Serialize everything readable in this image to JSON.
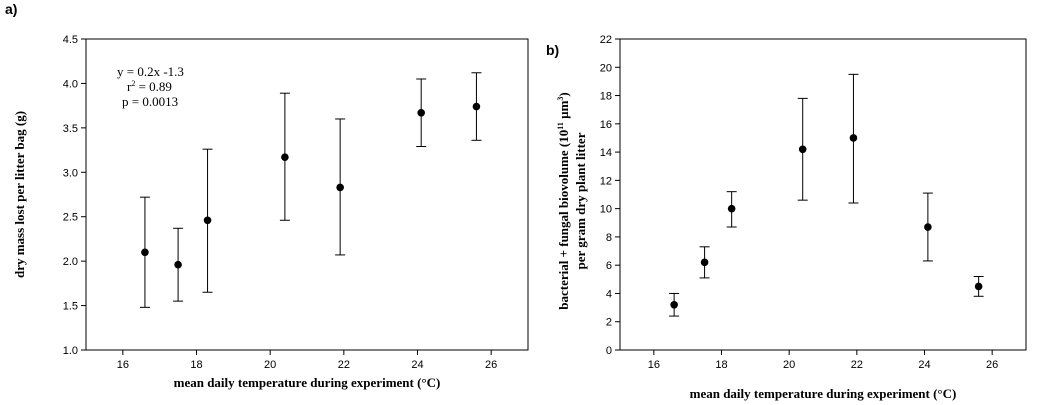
{
  "chart_data": [
    {
      "type": "scatter",
      "panel_label": "a)",
      "xlabel": "mean daily temperature during experiment (°C)",
      "ylabel": "dry mass lost per litter bag (g)",
      "xlim": [
        15,
        27
      ],
      "ylim": [
        1.0,
        4.5
      ],
      "xticks": [
        16,
        18,
        20,
        22,
        24,
        26
      ],
      "yticks": [
        1.0,
        1.5,
        2.0,
        2.5,
        3.0,
        3.5,
        4.0,
        4.5
      ],
      "ytick_decimals": 1,
      "grid": false,
      "points": [
        {
          "x": 16.6,
          "y": 2.1,
          "err_low": 1.48,
          "err_high": 2.72
        },
        {
          "x": 17.5,
          "y": 1.96,
          "err_low": 1.55,
          "err_high": 2.37
        },
        {
          "x": 18.3,
          "y": 2.46,
          "err_low": 1.65,
          "err_high": 3.26
        },
        {
          "x": 20.4,
          "y": 3.17,
          "err_low": 2.46,
          "err_high": 3.89
        },
        {
          "x": 21.9,
          "y": 2.83,
          "err_low": 2.07,
          "err_high": 3.6
        },
        {
          "x": 24.1,
          "y": 3.67,
          "err_low": 3.29,
          "err_high": 4.05
        },
        {
          "x": 25.6,
          "y": 3.74,
          "err_low": 3.36,
          "err_high": 4.12
        }
      ],
      "annotation": {
        "equation": "y = 0.2x -1.3",
        "r2_prefix": "r",
        "r2_sup": "2",
        "r2_value": " = 0.89",
        "pvalue": "p = 0.0013"
      }
    },
    {
      "type": "scatter",
      "panel_label": "b)",
      "xlabel": "mean daily temperature during experiment (°C)",
      "ylabel_line1_parts": [
        "bacterial + fungal biovolume (10",
        "11",
        " µm",
        "3",
        ")"
      ],
      "ylabel_line2": "per gram dry plant litter",
      "xlim": [
        15,
        27
      ],
      "ylim": [
        0,
        22
      ],
      "xticks": [
        16,
        18,
        20,
        22,
        24,
        26
      ],
      "yticks": [
        0,
        2,
        4,
        6,
        8,
        10,
        12,
        14,
        16,
        18,
        20,
        22
      ],
      "ytick_decimals": 0,
      "grid": false,
      "points": [
        {
          "x": 16.6,
          "y": 3.2,
          "err_low": 2.4,
          "err_high": 4.0
        },
        {
          "x": 17.5,
          "y": 6.2,
          "err_low": 5.1,
          "err_high": 7.3
        },
        {
          "x": 18.3,
          "y": 10.0,
          "err_low": 8.7,
          "err_high": 11.2
        },
        {
          "x": 20.4,
          "y": 14.2,
          "err_low": 10.6,
          "err_high": 17.8
        },
        {
          "x": 21.9,
          "y": 15.0,
          "err_low": 10.4,
          "err_high": 19.5
        },
        {
          "x": 24.1,
          "y": 8.7,
          "err_low": 6.3,
          "err_high": 11.1
        },
        {
          "x": 25.6,
          "y": 4.5,
          "err_low": 3.8,
          "err_high": 5.2
        }
      ]
    }
  ]
}
